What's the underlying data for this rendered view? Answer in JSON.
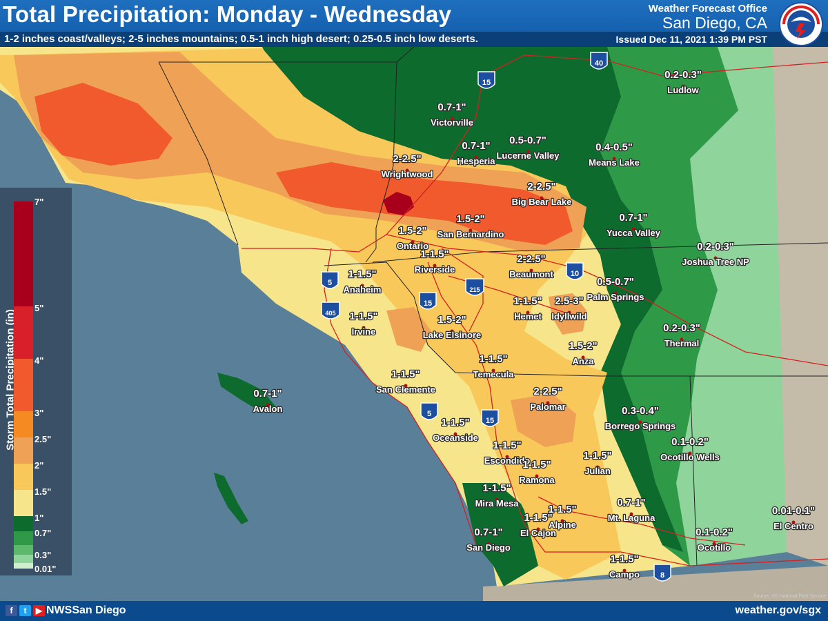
{
  "header": {
    "title": "Total Precipitation: Monday - Wednesday",
    "subtitle": "1-2 inches coast/valleys; 2-5 inches mountains; 0.5-1 inch high desert; 0.25-0.5 inch low deserts.",
    "office_line1": "Weather Forecast Office",
    "office_line2": "San Diego, CA",
    "issued": "Issued Dec 11, 2021 1:39 PM PST",
    "logo_text": "NATIONAL WEATHER SERVICE"
  },
  "legend": {
    "title": "Storm Total Precipitation (in)",
    "ticks": [
      {
        "label": "7\"",
        "value": 7
      },
      {
        "label": "5\"",
        "value": 5
      },
      {
        "label": "4\"",
        "value": 4
      },
      {
        "label": "3\"",
        "value": 3
      },
      {
        "label": "2.5\"",
        "value": 2.5
      },
      {
        "label": "2\"",
        "value": 2
      },
      {
        "label": "1.5\"",
        "value": 1.5
      },
      {
        "label": "1\"",
        "value": 1
      },
      {
        "label": "0.7\"",
        "value": 0.7
      },
      {
        "label": "0.3\"",
        "value": 0.3
      },
      {
        "label": "0.01\"",
        "value": 0.01
      }
    ],
    "colors": {
      "dark_red": "#a8001c",
      "red": "#d8202a",
      "orange_red": "#f05a2c",
      "orange": "#f58a22",
      "light_orange": "#efa255",
      "gold": "#f8c95a",
      "yellow": "#f6e58a",
      "dark_green": "#0e6b2e",
      "green": "#2e9a48",
      "light_green": "#8fd49a",
      "pale_green": "#cfeecd"
    }
  },
  "interstates": [
    "15",
    "40",
    "5",
    "405",
    "15",
    "215",
    "10",
    "5",
    "15",
    "8"
  ],
  "locations": [
    {
      "name": "Victorville",
      "amount": "0.7-1\""
    },
    {
      "name": "Hesperia",
      "amount": "0.7-1\""
    },
    {
      "name": "Lucerne Valley",
      "amount": "0.5-0.7\""
    },
    {
      "name": "Means Lake",
      "amount": "0.4-0.5\""
    },
    {
      "name": "Ludlow",
      "amount": "0.2-0.3\""
    },
    {
      "name": "Wrightwood",
      "amount": "2-2.5\""
    },
    {
      "name": "Big Bear Lake",
      "amount": "2-2.5\""
    },
    {
      "name": "Yucca Valley",
      "amount": "0.7-1\""
    },
    {
      "name": "Ontario",
      "amount": "1.5-2\""
    },
    {
      "name": "San Bernardino",
      "amount": "1.5-2\""
    },
    {
      "name": "Joshua Tree NP",
      "amount": "0.2-0.3\""
    },
    {
      "name": "Riverside",
      "amount": "1-1.5\""
    },
    {
      "name": "Anaheim",
      "amount": "1-1.5\""
    },
    {
      "name": "Beaumont",
      "amount": "2-2.5\""
    },
    {
      "name": "Palm Springs",
      "amount": "0.5-0.7\""
    },
    {
      "name": "Hemet",
      "amount": "1-1.5\""
    },
    {
      "name": "Idyllwild",
      "amount": "2.5-3\""
    },
    {
      "name": "Irvine",
      "amount": "1-1.5\""
    },
    {
      "name": "Lake Elsinore",
      "amount": "1.5-2\""
    },
    {
      "name": "Thermal",
      "amount": "0.2-0.3\""
    },
    {
      "name": "Anza",
      "amount": "1.5-2\""
    },
    {
      "name": "Temecula",
      "amount": "1-1.5\""
    },
    {
      "name": "San Clemente",
      "amount": "1-1.5\""
    },
    {
      "name": "Avalon",
      "amount": "0.7-1\""
    },
    {
      "name": "Palomar",
      "amount": "2-2.5\""
    },
    {
      "name": "Borrego Springs",
      "amount": "0.3-0.4\""
    },
    {
      "name": "Oceanside",
      "amount": "1-1.5\""
    },
    {
      "name": "Ocotillo Wells",
      "amount": "0.1-0.2\""
    },
    {
      "name": "Escondido",
      "amount": "1-1.5\""
    },
    {
      "name": "Julian",
      "amount": "1-1.5\""
    },
    {
      "name": "Ramona",
      "amount": "1-1.5\""
    },
    {
      "name": "Mira Mesa",
      "amount": "1-1.5\""
    },
    {
      "name": "Mt. Laguna",
      "amount": "0.7-1\""
    },
    {
      "name": "El Cajon",
      "amount": "1-1.5\""
    },
    {
      "name": "Alpine",
      "amount": "1-1.5\""
    },
    {
      "name": "El Centro",
      "amount": "0.01-0.1\""
    },
    {
      "name": "San Diego",
      "amount": "0.7-1\""
    },
    {
      "name": "Ocotillo",
      "amount": "0.1-0.2\""
    },
    {
      "name": "Campo",
      "amount": "1-1.5\""
    }
  ],
  "footer": {
    "social_icons": [
      "facebook-icon",
      "twitter-icon",
      "youtube-icon"
    ],
    "handle": "NWSSan Diego",
    "website": "weather.gov/sgx",
    "source": "Source: US National Park Service"
  }
}
